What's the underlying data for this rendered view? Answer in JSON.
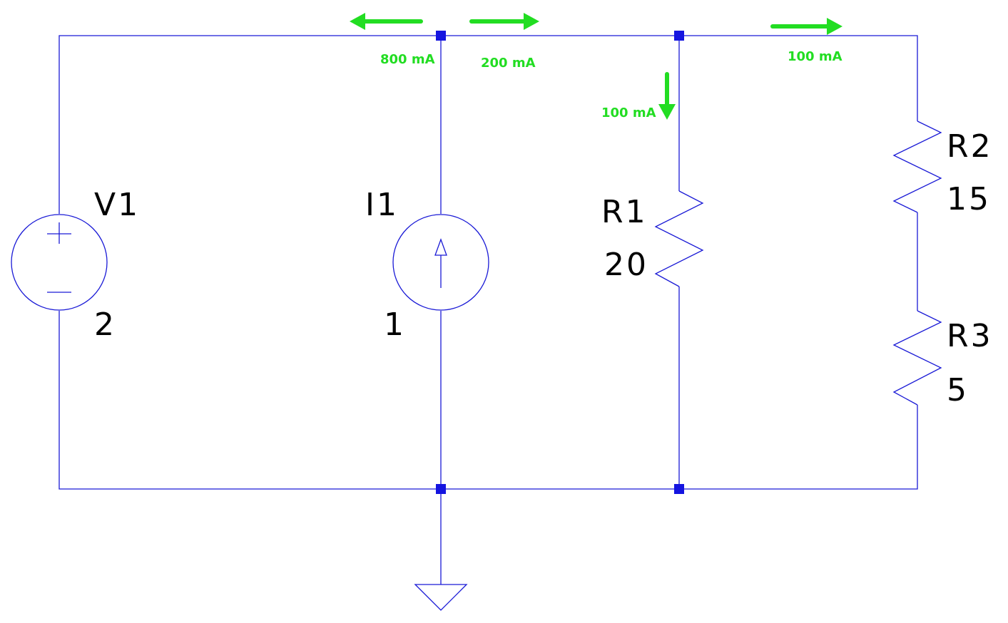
{
  "components": {
    "V1": {
      "name": "V1",
      "value": "2"
    },
    "I1": {
      "name": "I1",
      "value": "1"
    },
    "R1": {
      "name": "R1",
      "value": "20"
    },
    "R2": {
      "name": "R2",
      "value": "15"
    },
    "R3": {
      "name": "R3",
      "value": "5"
    }
  },
  "currents": {
    "i1_left": "800 mA",
    "i1_right": "200 mA",
    "r1_down": "100 mA",
    "r2_right": "100 mA"
  },
  "colors": {
    "wire": "#1a1ad6",
    "junction": "#1414e0",
    "current_arrow": "#22dd22",
    "text": "#000000"
  }
}
